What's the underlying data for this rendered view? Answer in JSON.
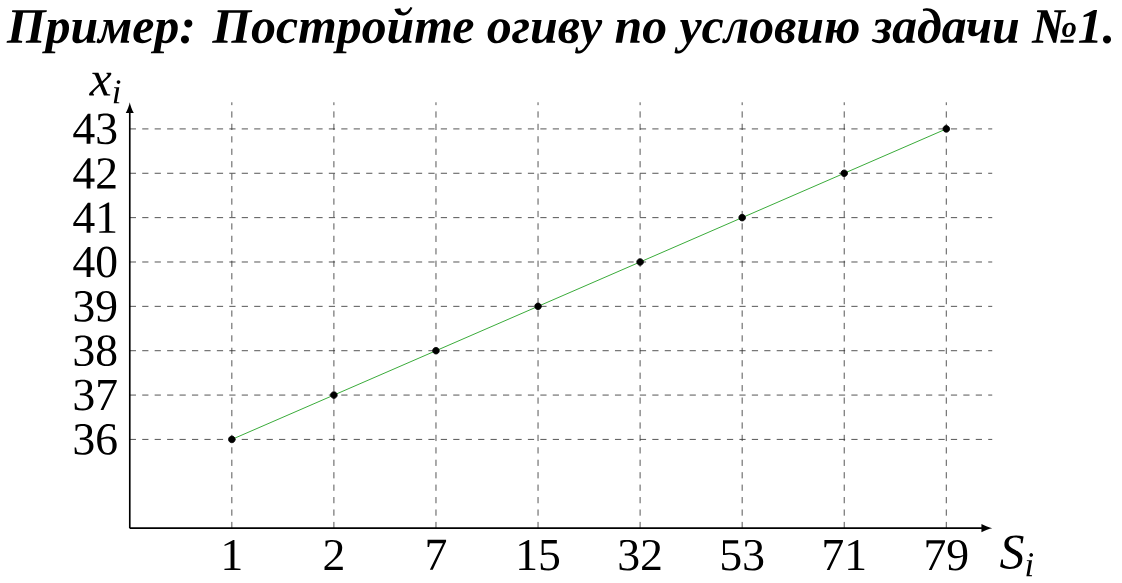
{
  "chart_data": {
    "type": "line",
    "title": "**Пример:** Постройте огиву по условию задачи №1.",
    "xlabel": "*S*$_{i}$",
    "ylabel": "*x*$_{i}$",
    "categories": [
      "1",
      "2",
      "7",
      "15",
      "32",
      "53",
      "71",
      "79"
    ],
    "series": [
      {
        "color": "#119911",
        "values": [
          36,
          37,
          38,
          39,
          40,
          41,
          42,
          43
        ]
      }
    ],
    "ylim": [
      34,
      43.6
    ],
    "yticks": [
      36,
      37,
      38,
      39,
      40,
      41,
      42,
      43
    ],
    "grid": true,
    "marker": "circle",
    "line_style": "solid"
  }
}
